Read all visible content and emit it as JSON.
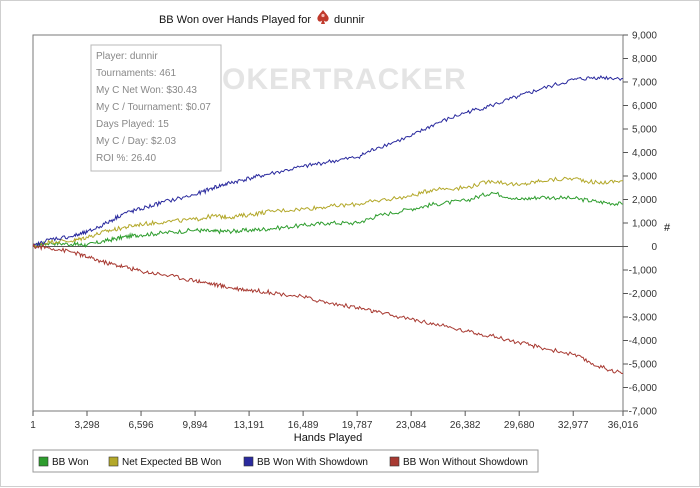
{
  "chart_data": {
    "type": "line",
    "title_prefix": "BB Won over Hands Played for",
    "player_name": "dunnir",
    "title_icon": "spade-icon",
    "watermark": {
      "part1": "POKER",
      "part2": "TRACKER"
    },
    "xlabel": "Hands Played",
    "ylabel": "#",
    "xlim": [
      1,
      36016
    ],
    "ylim": [
      -7000,
      9000
    ],
    "x_ticks": [
      1,
      3298,
      6596,
      9894,
      13191,
      16489,
      19787,
      23084,
      26382,
      29680,
      32977,
      36016
    ],
    "x_tick_labels": [
      "1",
      "3,298",
      "6,596",
      "9,894",
      "13,191",
      "16,489",
      "19,787",
      "23,084",
      "26,382",
      "29,680",
      "32,977",
      "36,016"
    ],
    "y_ticks": [
      9000,
      8000,
      7000,
      6000,
      5000,
      4000,
      3000,
      2000,
      1000,
      0,
      -1000,
      -2000,
      -3000,
      -4000,
      -5000,
      -6000,
      -7000
    ],
    "y_tick_labels": [
      "9,000",
      "8,000",
      "7,000",
      "6,000",
      "5,000",
      "4,000",
      "3,000",
      "2,000",
      "1,000",
      "0",
      "-1,000",
      "-2,000",
      "-3,000",
      "-4,000",
      "-5,000",
      "-6,000",
      "-7,000"
    ],
    "legend": [
      "BB Won",
      "Net Expected BB Won",
      "BB Won With Showdown",
      "BB Won Without Showdown"
    ],
    "series": [
      {
        "name": "BB Won",
        "color": "#2e9d2e",
        "x": [
          1,
          1000,
          2500,
          3300,
          4500,
          5500,
          6600,
          8000,
          9900,
          11000,
          12000,
          13200,
          14500,
          16500,
          18000,
          19800,
          21000,
          23100,
          24500,
          26400,
          28000,
          29700,
          31000,
          33000,
          34500,
          36016
        ],
        "values": [
          0,
          150,
          100,
          60,
          250,
          400,
          500,
          580,
          700,
          640,
          650,
          690,
          760,
          900,
          1000,
          1000,
          1300,
          1600,
          1800,
          1950,
          2300,
          2000,
          2100,
          2050,
          1900,
          1800
        ]
      },
      {
        "name": "Net Expected BB Won",
        "color": "#b3a82a",
        "x": [
          1,
          1000,
          2500,
          3300,
          4500,
          5500,
          6600,
          8000,
          9900,
          11000,
          12000,
          13200,
          14500,
          16500,
          18000,
          19800,
          21000,
          23100,
          24500,
          26400,
          28000,
          29700,
          31000,
          33000,
          34500,
          36016
        ],
        "values": [
          0,
          200,
          250,
          400,
          650,
          800,
          950,
          1050,
          1150,
          1300,
          1250,
          1350,
          1500,
          1600,
          1700,
          1800,
          1950,
          2150,
          2450,
          2500,
          2800,
          2600,
          2800,
          2900,
          2700,
          2800
        ]
      },
      {
        "name": "BB Won With Showdown",
        "color": "#2a2a9e",
        "x": [
          1,
          1000,
          2500,
          3300,
          4500,
          5500,
          6600,
          8000,
          9900,
          11000,
          12000,
          13200,
          14500,
          16500,
          18000,
          19800,
          21000,
          23100,
          24500,
          26400,
          28000,
          29700,
          31000,
          33000,
          34500,
          36016
        ],
        "values": [
          0,
          300,
          450,
          600,
          1000,
          1400,
          1600,
          1900,
          2200,
          2500,
          2700,
          2900,
          3100,
          3400,
          3600,
          3800,
          4200,
          4700,
          5200,
          5700,
          6000,
          6400,
          6700,
          7100,
          7200,
          7150
        ]
      },
      {
        "name": "BB Won Without Showdown",
        "color": "#a83a32",
        "x": [
          1,
          1000,
          2500,
          3300,
          4500,
          5500,
          6600,
          8000,
          9900,
          11000,
          12000,
          13200,
          14500,
          16500,
          18000,
          19800,
          21000,
          23100,
          24500,
          26400,
          28000,
          29700,
          31000,
          33000,
          34500,
          36016
        ],
        "values": [
          0,
          -50,
          -250,
          -450,
          -700,
          -850,
          -1050,
          -1200,
          -1450,
          -1600,
          -1750,
          -1850,
          -1950,
          -2150,
          -2400,
          -2600,
          -2800,
          -3100,
          -3300,
          -3600,
          -3800,
          -4100,
          -4300,
          -4600,
          -5100,
          -5400
        ]
      }
    ],
    "stats_box": [
      "Player: dunnir",
      "Tournaments: 461",
      "My C Net Won: $30.43",
      "My C / Tournament: $0.07",
      "Days Played: 15",
      "My C / Day: $2.03",
      "ROI %: 26.40"
    ]
  }
}
